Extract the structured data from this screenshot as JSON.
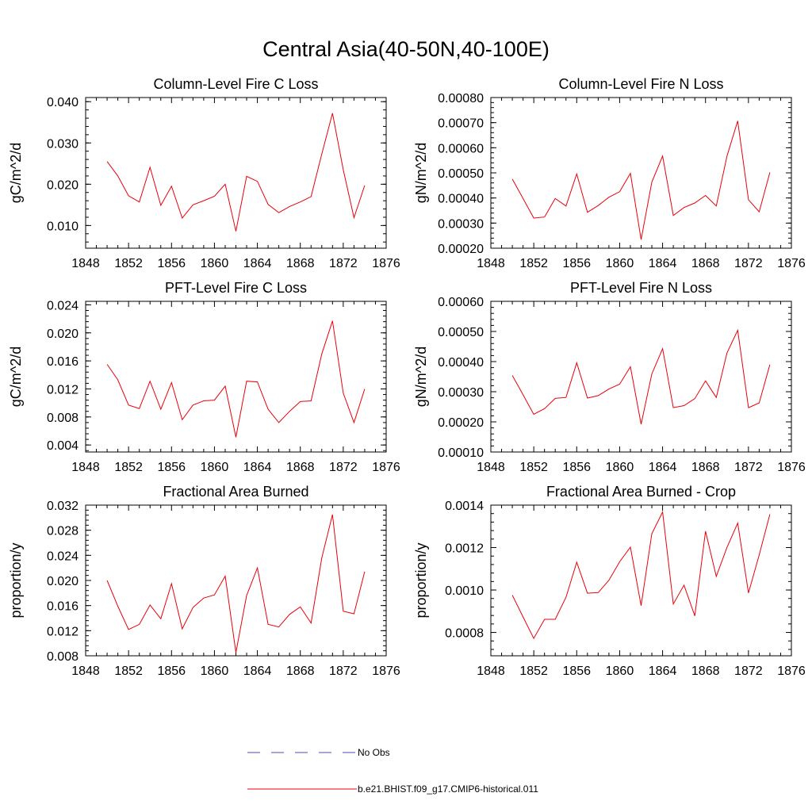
{
  "figure": {
    "title": "Central Asia(40-50N,40-100E)",
    "line_color": "#e8000b",
    "obs_color": "#4b4bb0"
  },
  "legend": {
    "obs_label": "No Obs",
    "model_label": "b.e21.BHIST.f09_g17.CMIP6-historical.011"
  },
  "chart_data": [
    {
      "type": "line",
      "title": "Column-Level Fire C Loss",
      "ylabel": "gC/m^2/d",
      "xlim": [
        1848,
        1876
      ],
      "ylim": [
        0.0045,
        0.041
      ],
      "xticks": [
        1848,
        1852,
        1856,
        1860,
        1864,
        1868,
        1872,
        1876
      ],
      "yticks": [
        0.01,
        0.02,
        0.03,
        0.04
      ],
      "ytick_labels": [
        "0.010",
        "0.020",
        "0.030",
        "0.040"
      ],
      "x": [
        1850,
        1851,
        1852,
        1853,
        1854,
        1855,
        1856,
        1857,
        1858,
        1859,
        1860,
        1861,
        1862,
        1863,
        1864,
        1865,
        1866,
        1867,
        1868,
        1869,
        1870,
        1871,
        1872,
        1873,
        1874
      ],
      "series": [
        {
          "name": "b.e21.BHIST.f09_g17.CMIP6-historical.011",
          "values": [
            0.0255,
            0.022,
            0.0172,
            0.0157,
            0.0241,
            0.0149,
            0.0195,
            0.0118,
            0.015,
            0.016,
            0.0171,
            0.02,
            0.0086,
            0.0219,
            0.0207,
            0.0151,
            0.0131,
            0.0146,
            0.0157,
            0.017,
            0.0273,
            0.0372,
            0.0235,
            0.0119,
            0.0197
          ]
        }
      ]
    },
    {
      "type": "line",
      "title": "Column-Level Fire N Loss",
      "ylabel": "gN/m^2/d",
      "xlim": [
        1848,
        1876
      ],
      "ylim": [
        0.0002,
        0.0008
      ],
      "xticks": [
        1848,
        1852,
        1856,
        1860,
        1864,
        1868,
        1872,
        1876
      ],
      "yticks": [
        0.0002,
        0.0003,
        0.0004,
        0.0005,
        0.0006,
        0.0007,
        0.0008
      ],
      "ytick_labels": [
        "0.00020",
        "0.00030",
        "0.00040",
        "0.00050",
        "0.00060",
        "0.00070",
        "0.00080"
      ],
      "x": [
        1850,
        1851,
        1852,
        1853,
        1854,
        1855,
        1856,
        1857,
        1858,
        1859,
        1860,
        1861,
        1862,
        1863,
        1864,
        1865,
        1866,
        1867,
        1868,
        1869,
        1870,
        1871,
        1872,
        1873,
        1874
      ],
      "series": [
        {
          "name": "b.e21.BHIST.f09_g17.CMIP6-historical.011",
          "values": [
            0.000475,
            0.000398,
            0.00032,
            0.000324,
            0.000398,
            0.000368,
            0.000496,
            0.000343,
            0.00037,
            0.000403,
            0.000425,
            0.000498,
            0.000234,
            0.000463,
            0.000567,
            0.00033,
            0.000362,
            0.00038,
            0.00041,
            0.000368,
            0.000567,
            0.000707,
            0.000393,
            0.000345,
            0.000502
          ]
        }
      ]
    },
    {
      "type": "line",
      "title": "PFT-Level Fire C Loss",
      "ylabel": "gC/m^2/d",
      "xlim": [
        1848,
        1876
      ],
      "ylim": [
        0.003,
        0.0245
      ],
      "xticks": [
        1848,
        1852,
        1856,
        1860,
        1864,
        1868,
        1872,
        1876
      ],
      "yticks": [
        0.004,
        0.008,
        0.012,
        0.016,
        0.02,
        0.024
      ],
      "ytick_labels": [
        "0.004",
        "0.008",
        "0.012",
        "0.016",
        "0.020",
        "0.024"
      ],
      "x": [
        1850,
        1851,
        1852,
        1853,
        1854,
        1855,
        1856,
        1857,
        1858,
        1859,
        1860,
        1861,
        1862,
        1863,
        1864,
        1865,
        1866,
        1867,
        1868,
        1869,
        1870,
        1871,
        1872,
        1873,
        1874
      ],
      "series": [
        {
          "name": "b.e21.BHIST.f09_g17.CMIP6-historical.011",
          "values": [
            0.0155,
            0.0133,
            0.0097,
            0.0092,
            0.0131,
            0.0091,
            0.0129,
            0.0076,
            0.0097,
            0.0103,
            0.0104,
            0.0124,
            0.0051,
            0.0131,
            0.013,
            0.0091,
            0.0072,
            0.0088,
            0.0102,
            0.0103,
            0.017,
            0.0217,
            0.0114,
            0.0072,
            0.012
          ]
        }
      ]
    },
    {
      "type": "line",
      "title": "PFT-Level Fire N Loss",
      "ylabel": "gN/m^2/d",
      "xlim": [
        1848,
        1876
      ],
      "ylim": [
        0.0001,
        0.0006
      ],
      "xticks": [
        1848,
        1852,
        1856,
        1860,
        1864,
        1868,
        1872,
        1876
      ],
      "yticks": [
        0.0001,
        0.0002,
        0.0003,
        0.0004,
        0.0005,
        0.0006
      ],
      "ytick_labels": [
        "0.00010",
        "0.00020",
        "0.00030",
        "0.00040",
        "0.00050",
        "0.00060"
      ],
      "x": [
        1850,
        1851,
        1852,
        1853,
        1854,
        1855,
        1856,
        1857,
        1858,
        1859,
        1860,
        1861,
        1862,
        1863,
        1864,
        1865,
        1866,
        1867,
        1868,
        1869,
        1870,
        1871,
        1872,
        1873,
        1874
      ],
      "series": [
        {
          "name": "b.e21.BHIST.f09_g17.CMIP6-historical.011",
          "values": [
            0.000354,
            0.00029,
            0.000225,
            0.000244,
            0.000278,
            0.000281,
            0.000396,
            0.000279,
            0.000287,
            0.000309,
            0.000325,
            0.000383,
            0.000192,
            0.000359,
            0.000443,
            0.000247,
            0.000254,
            0.000277,
            0.000336,
            0.000281,
            0.000429,
            0.000504,
            0.000247,
            0.000263,
            0.00039
          ]
        }
      ]
    },
    {
      "type": "line",
      "title": "Fractional Area Burned",
      "ylabel": "proportion/y",
      "xlim": [
        1848,
        1876
      ],
      "ylim": [
        0.008,
        0.032
      ],
      "xticks": [
        1848,
        1852,
        1856,
        1860,
        1864,
        1868,
        1872,
        1876
      ],
      "yticks": [
        0.008,
        0.012,
        0.016,
        0.02,
        0.024,
        0.028,
        0.032
      ],
      "ytick_labels": [
        "0.008",
        "0.012",
        "0.016",
        "0.020",
        "0.024",
        "0.028",
        "0.032"
      ],
      "x": [
        1850,
        1851,
        1852,
        1853,
        1854,
        1855,
        1856,
        1857,
        1858,
        1859,
        1860,
        1861,
        1862,
        1863,
        1864,
        1865,
        1866,
        1867,
        1868,
        1869,
        1870,
        1871,
        1872,
        1873,
        1874
      ],
      "series": [
        {
          "name": "b.e21.BHIST.f09_g17.CMIP6-historical.011",
          "values": [
            0.02,
            0.0159,
            0.0122,
            0.013,
            0.0161,
            0.0139,
            0.0195,
            0.0123,
            0.0157,
            0.0172,
            0.0177,
            0.0207,
            0.0085,
            0.0176,
            0.022,
            0.013,
            0.0126,
            0.0146,
            0.0158,
            0.0132,
            0.0236,
            0.0305,
            0.0151,
            0.0147,
            0.0214
          ]
        }
      ]
    },
    {
      "type": "line",
      "title": "Fractional Area Burned - Crop",
      "ylabel": "proportion/y",
      "xlim": [
        1848,
        1876
      ],
      "ylim": [
        0.00069,
        0.0014
      ],
      "xticks": [
        1848,
        1852,
        1856,
        1860,
        1864,
        1868,
        1872,
        1876
      ],
      "yticks": [
        0.0008,
        0.001,
        0.0012,
        0.0014
      ],
      "ytick_labels": [
        "0.0008",
        "0.0010",
        "0.0012",
        "0.0014"
      ],
      "x": [
        1850,
        1851,
        1852,
        1853,
        1854,
        1855,
        1856,
        1857,
        1858,
        1859,
        1860,
        1861,
        1862,
        1863,
        1864,
        1865,
        1866,
        1867,
        1868,
        1869,
        1870,
        1871,
        1872,
        1873,
        1874
      ],
      "series": [
        {
          "name": "b.e21.BHIST.f09_g17.CMIP6-historical.011",
          "values": [
            0.000976,
            0.000873,
            0.000772,
            0.000862,
            0.000862,
            0.000966,
            0.001131,
            0.000985,
            0.000988,
            0.001046,
            0.001133,
            0.001202,
            0.000926,
            0.001265,
            0.001368,
            0.000934,
            0.001023,
            0.000878,
            0.001277,
            0.001064,
            0.001201,
            0.001315,
            0.000986,
            0.001165,
            0.001357
          ]
        }
      ]
    }
  ]
}
